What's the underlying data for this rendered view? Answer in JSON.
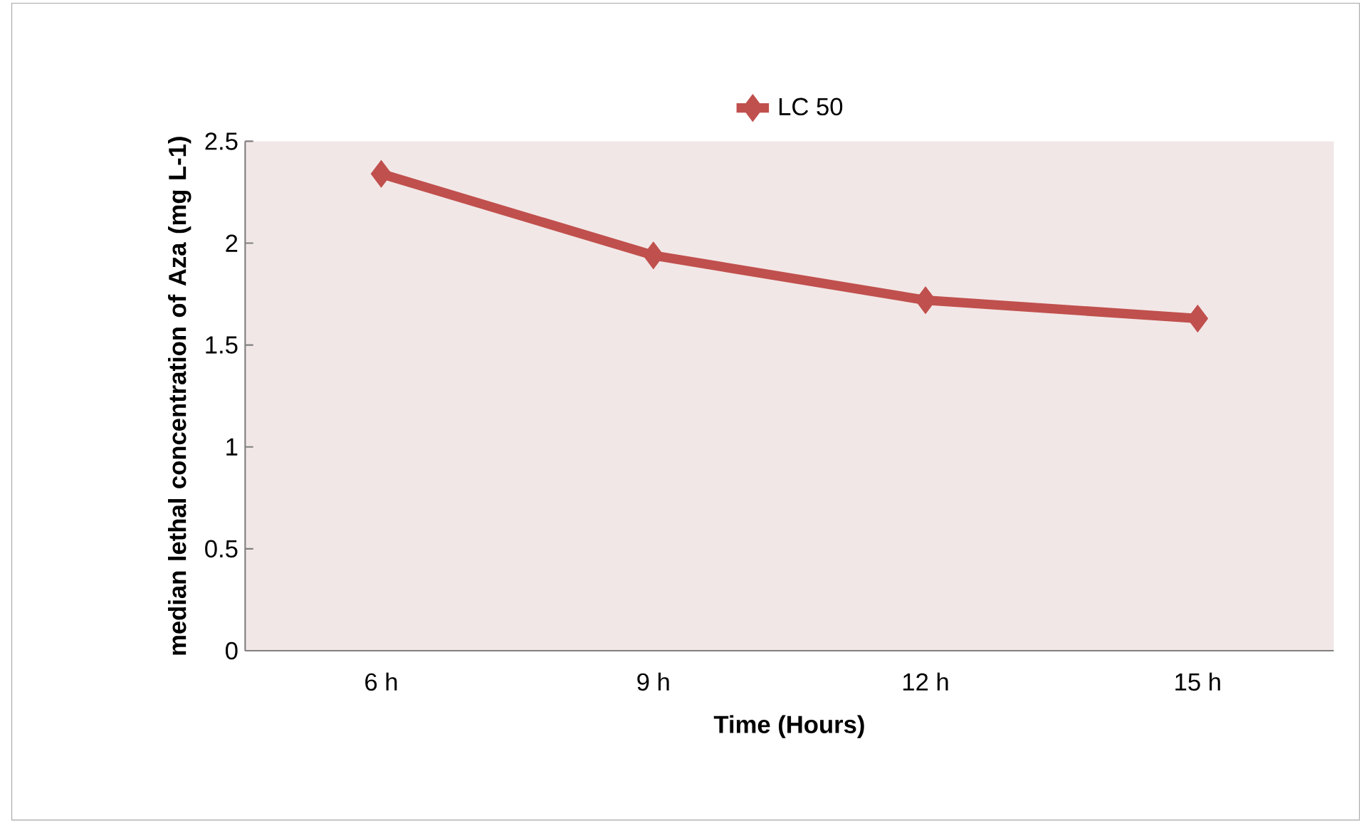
{
  "chart_data": {
    "type": "line",
    "xlabel": "Time (Hours)",
    "ylabel": "median lethal concentration of Aza (mg L-1)",
    "categories": [
      "6 h",
      "9 h",
      "12 h",
      "15 h"
    ],
    "series": [
      {
        "name": "LC 50",
        "color": "#c0504d",
        "values": [
          2.34,
          1.94,
          1.72,
          1.63
        ]
      }
    ],
    "ylim": [
      0,
      2.5
    ],
    "yticks": [
      0,
      0.5,
      1,
      1.5,
      2,
      2.5
    ],
    "marker": "diamond",
    "legend": "top",
    "grid": false
  }
}
